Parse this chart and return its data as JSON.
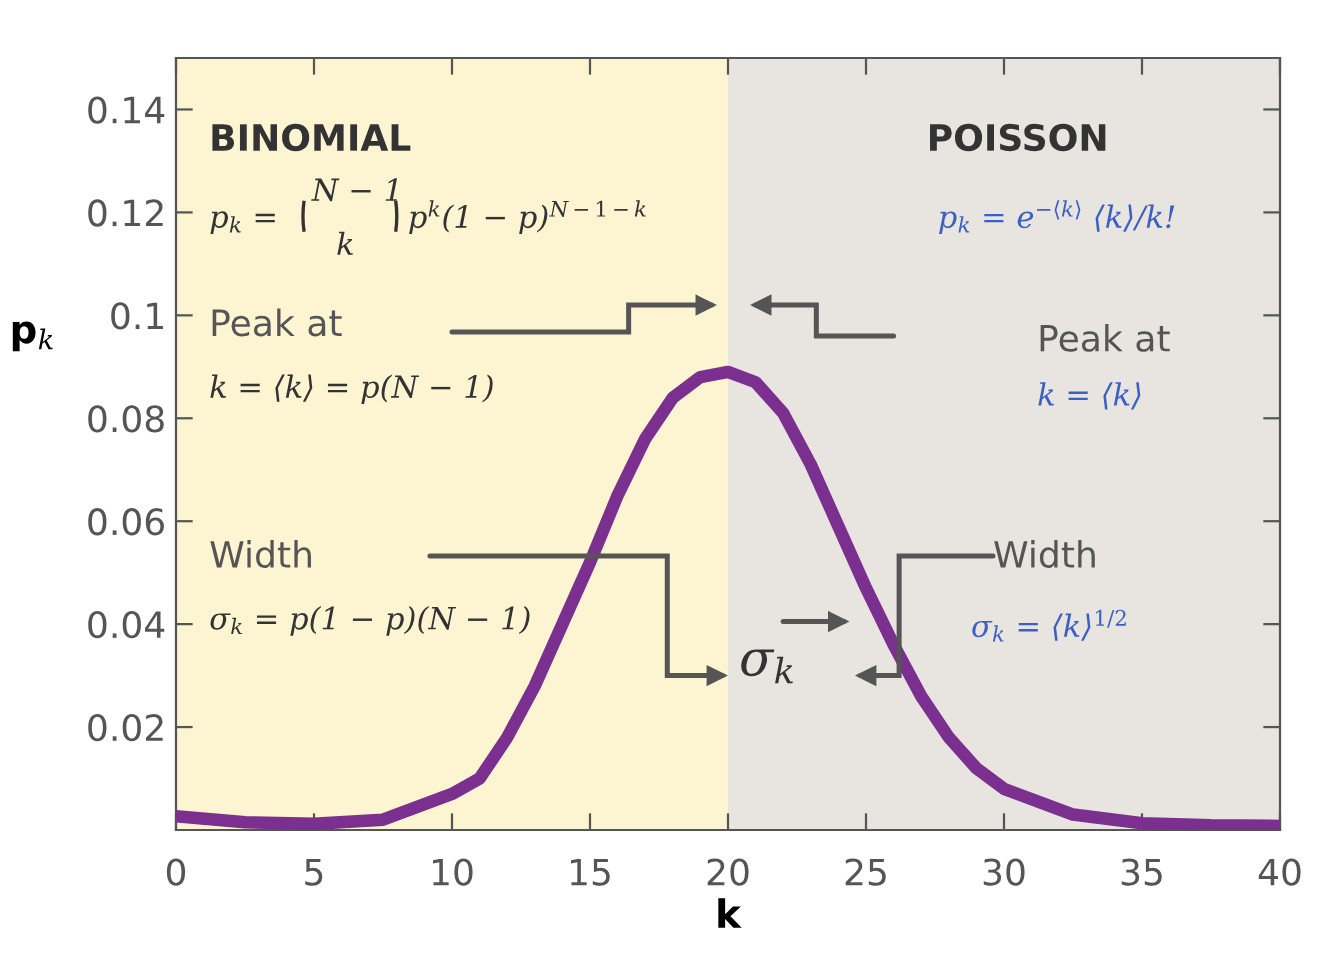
{
  "chart_data": {
    "type": "line",
    "xlabel": "k",
    "ylabel": "p$_{k}$",
    "x": [
      0,
      2.5,
      5,
      7.5,
      10,
      11,
      12,
      13,
      14,
      15,
      16,
      17,
      18,
      19,
      20,
      21,
      22,
      23,
      24,
      25,
      26,
      27,
      28,
      29,
      30,
      32.5,
      35,
      37.5,
      40
    ],
    "series": [
      {
        "color": "#7b2f8e",
        "values": [
          0.0027,
          0.0015,
          0.0012,
          0.002,
          0.007,
          0.01,
          0.018,
          0.028,
          0.04,
          0.052,
          0.065,
          0.076,
          0.084,
          0.088,
          0.089,
          0.087,
          0.081,
          0.071,
          0.059,
          0.047,
          0.036,
          0.026,
          0.018,
          0.012,
          0.008,
          0.003,
          0.0013,
          0.0009,
          0.0008
        ]
      }
    ],
    "xlim": [
      0,
      40
    ],
    "ylim": [
      0,
      0.15
    ],
    "xticks": [
      0,
      5,
      10,
      15,
      20,
      25,
      30,
      35,
      40
    ],
    "yticks": [
      0.02,
      0.04,
      0.06,
      0.08,
      0.1,
      0.12,
      0.14
    ],
    "bands": [
      {
        "axis": "x",
        "from": 0,
        "to": 20,
        "color": "#fdf5d2"
      },
      {
        "axis": "x",
        "from": 20,
        "to": 40,
        "color": "#e8e4df"
      }
    ],
    "annotations": [
      "BINOMIAL",
      "POISSON",
      "p$_{k}$ =",
      "N − 1",
      "k",
      "p$^{k}$(1 − p)$^{N−1−k}$",
      "p$_{k}$ = e$^{−⟨k⟩}$ ⟨k⟩/k!",
      "Peak at",
      "k = ⟨k⟩ = p(N − 1)",
      "Width",
      "σ$_{k}$ = p(1 − p)(N − 1)",
      "Peak at",
      "k = ⟨k⟩",
      "Width",
      "σ$_{k}$ = ⟨k⟩$^{1/2}$",
      "σ$_{k}$"
    ],
    "grid": false,
    "legend": false,
    "marker": "none",
    "line_style": "solid"
  }
}
